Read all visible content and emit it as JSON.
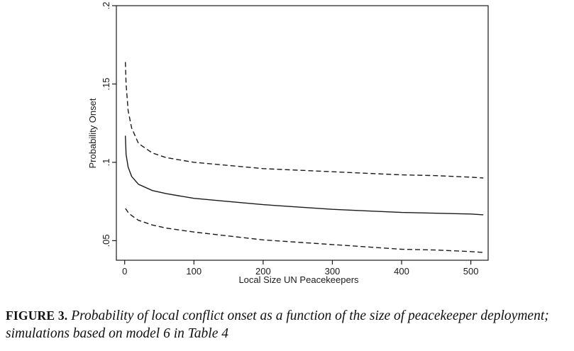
{
  "caption": {
    "label": "FIGURE 3.",
    "text": "Probability of local conflict onset as a function of the size of peacekeeper deployment; simulations based on model 6 in Table 4"
  },
  "chart_data": {
    "type": "line",
    "title": "",
    "xlabel": "Local Size UN Peacekeepers",
    "ylabel": "Probability Onset",
    "xlim": [
      -12,
      525
    ],
    "ylim": [
      0.0375,
      0.2
    ],
    "xticks": [
      0,
      100,
      200,
      300,
      400,
      500
    ],
    "xtick_labels": [
      "0",
      "100",
      "200",
      "300",
      "400",
      "500"
    ],
    "yticks": [
      0.05,
      0.1,
      0.15,
      0.2
    ],
    "ytick_labels": [
      ".05",
      ".1",
      ".15",
      ".2"
    ],
    "grid": false,
    "legend": "none",
    "x": [
      1,
      2,
      5,
      10,
      20,
      40,
      60,
      100,
      150,
      200,
      250,
      300,
      350,
      400,
      450,
      500,
      518
    ],
    "series": [
      {
        "style": "dashed",
        "color": "#1a1a1a",
        "values": [
          0.164,
          0.15,
          0.133,
          0.122,
          0.112,
          0.106,
          0.103,
          0.1,
          0.098,
          0.096,
          0.095,
          0.094,
          0.093,
          0.092,
          0.0915,
          0.0905,
          0.09
        ]
      },
      {
        "style": "solid",
        "color": "#1a1a1a",
        "values": [
          0.117,
          0.105,
          0.097,
          0.091,
          0.086,
          0.082,
          0.08,
          0.077,
          0.075,
          0.073,
          0.0715,
          0.07,
          0.069,
          0.068,
          0.0675,
          0.067,
          0.0665
        ]
      },
      {
        "style": "dashed",
        "color": "#1a1a1a",
        "values": [
          0.0705,
          0.07,
          0.068,
          0.066,
          0.063,
          0.06,
          0.058,
          0.0555,
          0.053,
          0.0505,
          0.049,
          0.0475,
          0.046,
          0.0445,
          0.044,
          0.043,
          0.0425
        ]
      }
    ]
  }
}
